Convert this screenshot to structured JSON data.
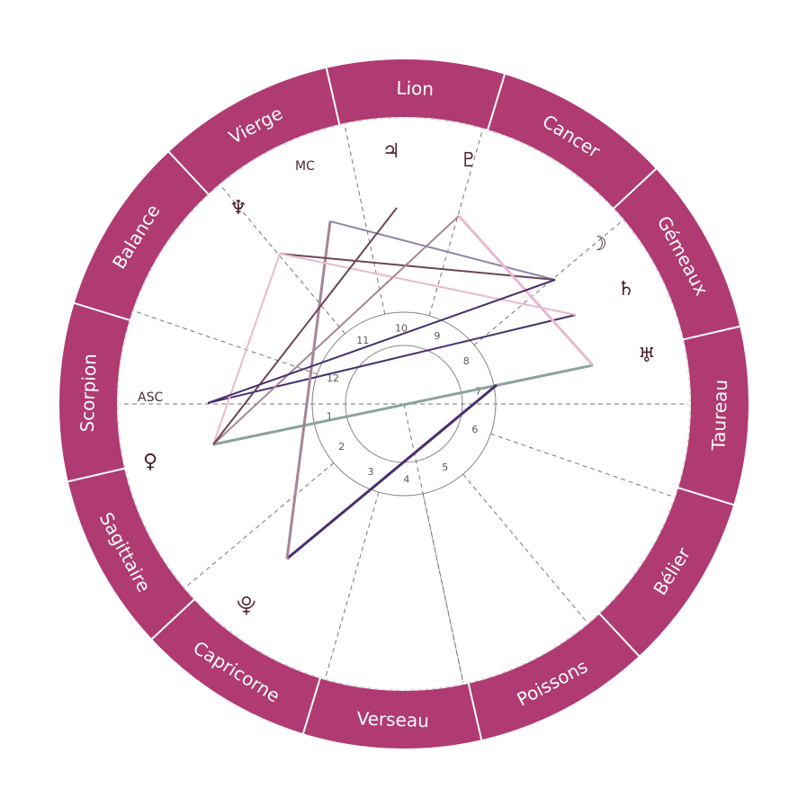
{
  "colors": {
    "ring": "#b03a72",
    "ring_divider": "#ffffff",
    "sign_text": "#ffffff",
    "dash": "#777777",
    "house_circle": "#888888",
    "glyph": "#4a2030"
  },
  "zodiac": {
    "signs": [
      "Lion",
      "Cancer",
      "Gémeaux",
      "Taureau",
      "Bélier",
      "Poissons",
      "Verseau",
      "Capricorne",
      "Sagittaire",
      "Scorpion",
      "Balance",
      "Vierge"
    ]
  },
  "axes": {
    "asc_label": "ASC",
    "mc_label": "MC"
  },
  "houses": {
    "numbers": [
      "1",
      "2",
      "3",
      "4",
      "5",
      "6",
      "7",
      "8",
      "9",
      "10",
      "11",
      "12"
    ]
  },
  "planets": [
    {
      "name": "jupiter",
      "glyph": "♃"
    },
    {
      "name": "pluto",
      "glyph": "♇"
    },
    {
      "name": "moon",
      "glyph": "☽"
    },
    {
      "name": "saturn",
      "glyph": "♄"
    },
    {
      "name": "uranus",
      "glyph": "♅"
    },
    {
      "name": "neptune",
      "glyph": "♆"
    },
    {
      "name": "venus",
      "glyph": "♀"
    },
    {
      "name": "pluto-alt",
      "glyph": "⯓"
    }
  ],
  "aspect_colors": [
    "#4a2e6e",
    "#6b4658",
    "#a68596",
    "#e9b9cf",
    "#8f87a8",
    "#8aa39a"
  ]
}
